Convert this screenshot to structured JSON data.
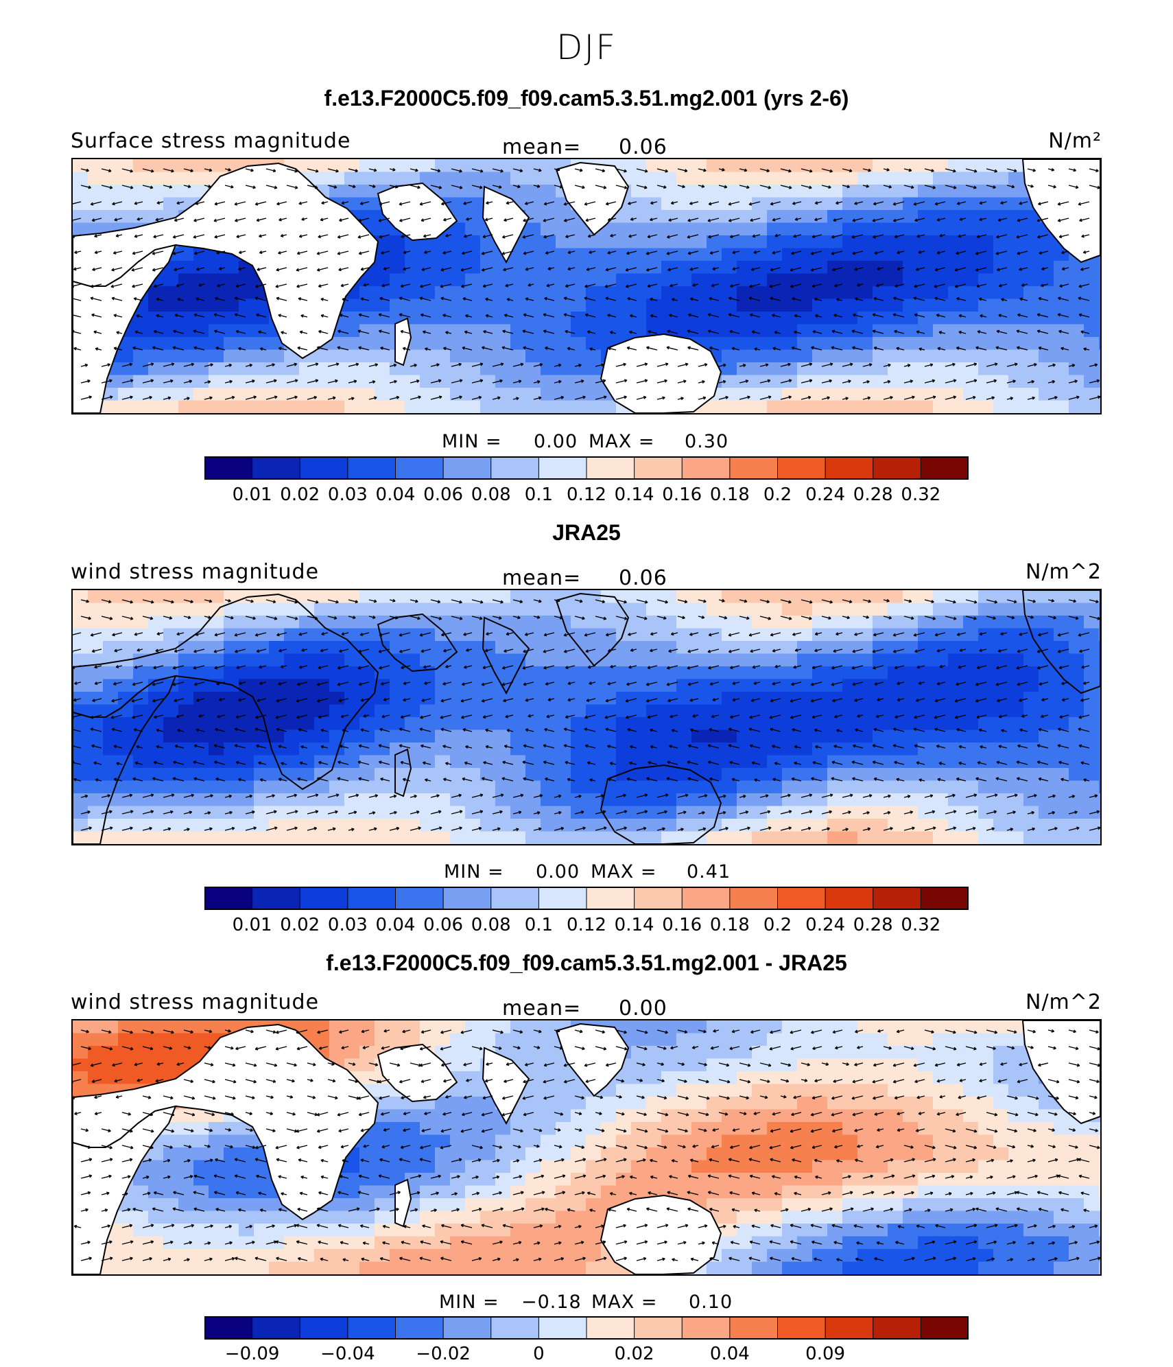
{
  "title": "DJF",
  "palette": [
    "#08007f",
    "#0a25b5",
    "#0d3edb",
    "#1a55ea",
    "#3a74ef",
    "#7aa0f4",
    "#a9c4f8",
    "#d7e6fc",
    "#fde6d6",
    "#fcc8ae",
    "#fba786",
    "#f6814f",
    "#f05a24",
    "#db3a0f",
    "#b62108",
    "#7a0603"
  ],
  "land_color": "#ffffff",
  "panels": [
    {
      "id": "model",
      "case_title": "f.e13.F2000C5.f09_f09.cam5.3.51.mg2.001 (yrs 2-6)",
      "left_label": "Surface stress magnitude",
      "mean_label": "mean=",
      "mean_value": "0.06",
      "units": "N/m²",
      "min_label": "MIN =",
      "min_value": "0.00",
      "max_label": "MAX =",
      "max_value": "0.30",
      "colorbar_ticks": [
        "0.01",
        "0.02",
        "0.03",
        "0.04",
        "0.06",
        "0.08",
        "0.1",
        "0.12",
        "0.14",
        "0.16",
        "0.18",
        "0.2",
        "0.24",
        "0.28",
        "0.32"
      ],
      "land_masked": true
    },
    {
      "id": "obs",
      "case_title": "JRA25",
      "left_label": "wind stress magnitude",
      "mean_label": "mean=",
      "mean_value": "0.06",
      "units": "N/m^2",
      "min_label": "MIN =",
      "min_value": "0.00",
      "max_label": "MAX =",
      "max_value": "0.41",
      "colorbar_ticks": [
        "0.01",
        "0.02",
        "0.03",
        "0.04",
        "0.06",
        "0.08",
        "0.1",
        "0.12",
        "0.14",
        "0.16",
        "0.18",
        "0.2",
        "0.24",
        "0.28",
        "0.32"
      ],
      "land_masked": false
    },
    {
      "id": "diff",
      "case_title": "f.e13.F2000C5.f09_f09.cam5.3.51.mg2.001 - JRA25",
      "left_label": "wind stress magnitude",
      "mean_label": "mean=",
      "mean_value": "0.00",
      "units": "N/m^2",
      "min_label": "MIN =",
      "min_value": "−0.18",
      "max_label": "MAX =",
      "max_value": "0.10",
      "colorbar_ticks": [
        "−0.09",
        "",
        "−0.04",
        "",
        "−0.02",
        "",
        "0",
        "",
        "0.02",
        "",
        "0.04",
        "",
        "0.09",
        ""
      ],
      "land_masked": true
    }
  ]
}
